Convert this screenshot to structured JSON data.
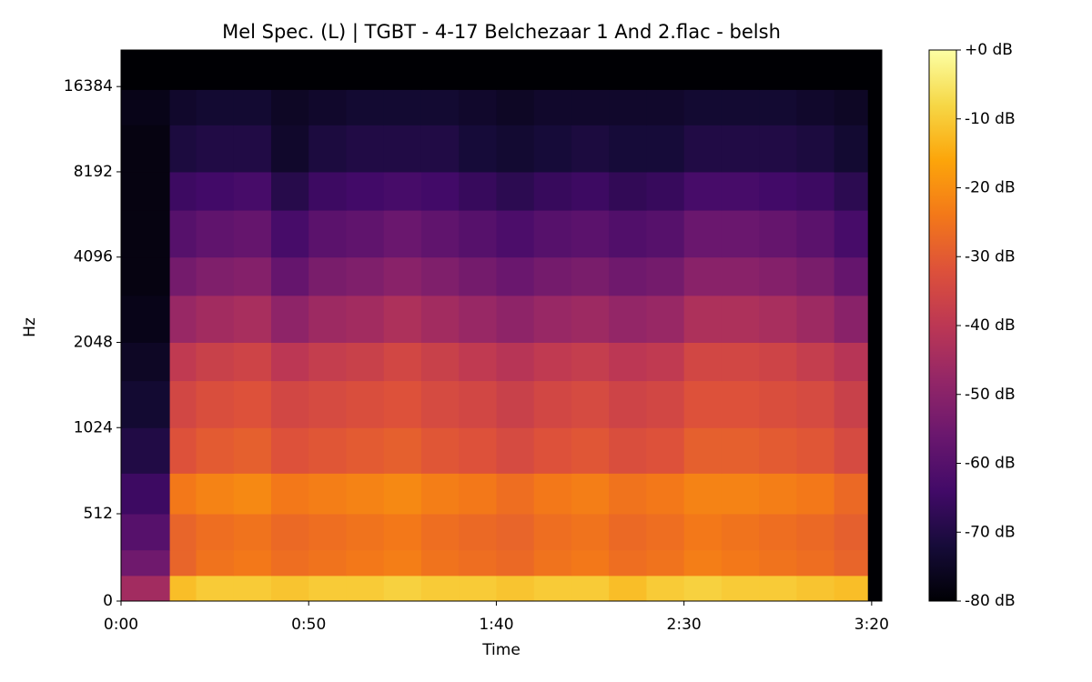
{
  "chart_data": {
    "type": "spectrogram",
    "title": "Mel Spec. (L) | TGBT - 4-17 Belchezaar 1 And 2.flac - belsh",
    "xlabel": "Time",
    "ylabel": "Hz",
    "xlim": [
      0,
      202.7
    ],
    "xticks": [
      {
        "value": 0,
        "label": "0:00"
      },
      {
        "value": 50,
        "label": "0:50"
      },
      {
        "value": 100,
        "label": "1:40"
      },
      {
        "value": 150,
        "label": "2:30"
      },
      {
        "value": 200,
        "label": "3:20"
      }
    ],
    "ylim": [
      0,
      22050
    ],
    "yscale": "symlog",
    "log_base": 2,
    "linthresh": 1000,
    "linscale": 1,
    "yticks": [
      0,
      512,
      1024,
      2048,
      4096,
      8192,
      16384
    ],
    "colormap": "inferno",
    "clim": [
      -80,
      0
    ],
    "colorbar_ticks": [
      {
        "value": 0,
        "label": "+0 dB"
      },
      {
        "value": -10,
        "label": "-10 dB"
      },
      {
        "value": -20,
        "label": "-20 dB"
      },
      {
        "value": -30,
        "label": "-30 dB"
      },
      {
        "value": -40,
        "label": "-40 dB"
      },
      {
        "value": -50,
        "label": "-50 dB"
      },
      {
        "value": -60,
        "label": "-60 dB"
      },
      {
        "value": -70,
        "label": "-70 dB"
      },
      {
        "value": -80,
        "label": "-80 dB"
      }
    ],
    "time_bins": [
      0,
      13,
      20,
      30,
      40,
      50,
      60,
      70,
      80,
      90,
      100,
      110,
      120,
      130,
      140,
      150,
      160,
      170,
      180,
      190,
      199,
      202.7
    ],
    "freq_bins": [
      0,
      150,
      300,
      512,
      750,
      1024,
      1500,
      2048,
      3000,
      4096,
      6000,
      8192,
      12000,
      16000,
      22050
    ],
    "values": [
      [
        -45,
        -12,
        -10,
        -10,
        -11,
        -10,
        -10,
        -9,
        -10,
        -10,
        -11,
        -10,
        -10,
        -12,
        -10,
        -9,
        -10,
        -10,
        -11,
        -12,
        -80
      ],
      [
        -55,
        -28,
        -25,
        -24,
        -26,
        -25,
        -24,
        -23,
        -25,
        -26,
        -27,
        -25,
        -24,
        -26,
        -25,
        -23,
        -24,
        -25,
        -26,
        -28,
        -80
      ],
      [
        -60,
        -28,
        -26,
        -25,
        -27,
        -26,
        -25,
        -24,
        -26,
        -27,
        -28,
        -26,
        -25,
        -27,
        -26,
        -24,
        -25,
        -26,
        -27,
        -29,
        -80
      ],
      [
        -65,
        -24,
        -22,
        -21,
        -24,
        -23,
        -22,
        -21,
        -23,
        -24,
        -26,
        -24,
        -23,
        -25,
        -24,
        -22,
        -22,
        -23,
        -24,
        -27,
        -80
      ],
      [
        -70,
        -32,
        -30,
        -29,
        -32,
        -31,
        -30,
        -29,
        -31,
        -32,
        -34,
        -32,
        -31,
        -33,
        -32,
        -29,
        -29,
        -30,
        -31,
        -34,
        -80
      ],
      [
        -73,
        -35,
        -33,
        -32,
        -35,
        -34,
        -33,
        -32,
        -34,
        -35,
        -37,
        -35,
        -34,
        -36,
        -35,
        -32,
        -32,
        -33,
        -34,
        -37,
        -80
      ],
      [
        -75,
        -39,
        -37,
        -36,
        -40,
        -38,
        -37,
        -35,
        -37,
        -39,
        -41,
        -39,
        -38,
        -40,
        -39,
        -35,
        -35,
        -36,
        -38,
        -41,
        -80
      ],
      [
        -77,
        -47,
        -45,
        -44,
        -49,
        -46,
        -45,
        -43,
        -45,
        -47,
        -49,
        -47,
        -46,
        -48,
        -47,
        -43,
        -43,
        -44,
        -46,
        -50,
        -80
      ],
      [
        -78,
        -54,
        -52,
        -51,
        -57,
        -53,
        -52,
        -50,
        -52,
        -54,
        -56,
        -54,
        -53,
        -55,
        -54,
        -50,
        -50,
        -51,
        -53,
        -57,
        -80
      ],
      [
        -78,
        -60,
        -58,
        -57,
        -63,
        -59,
        -58,
        -56,
        -58,
        -60,
        -62,
        -60,
        -59,
        -61,
        -60,
        -56,
        -56,
        -57,
        -59,
        -63,
        -80
      ],
      [
        -78,
        -65,
        -64,
        -63,
        -69,
        -65,
        -64,
        -63,
        -64,
        -66,
        -68,
        -66,
        -65,
        -67,
        -66,
        -63,
        -63,
        -64,
        -65,
        -68,
        -80
      ],
      [
        -78,
        -71,
        -70,
        -70,
        -74,
        -71,
        -70,
        -70,
        -70,
        -72,
        -73,
        -72,
        -71,
        -72,
        -72,
        -70,
        -70,
        -70,
        -71,
        -73,
        -80
      ],
      [
        -77,
        -74,
        -73,
        -73,
        -75,
        -74,
        -73,
        -73,
        -73,
        -74,
        -75,
        -74,
        -74,
        -74,
        -74,
        -73,
        -73,
        -73,
        -74,
        -75,
        -80
      ],
      [
        -80,
        -80,
        -80,
        -80,
        -80,
        -80,
        -80,
        -80,
        -80,
        -80,
        -80,
        -80,
        -80,
        -80,
        -80,
        -80,
        -80,
        -80,
        -80,
        -80,
        -80
      ]
    ]
  }
}
